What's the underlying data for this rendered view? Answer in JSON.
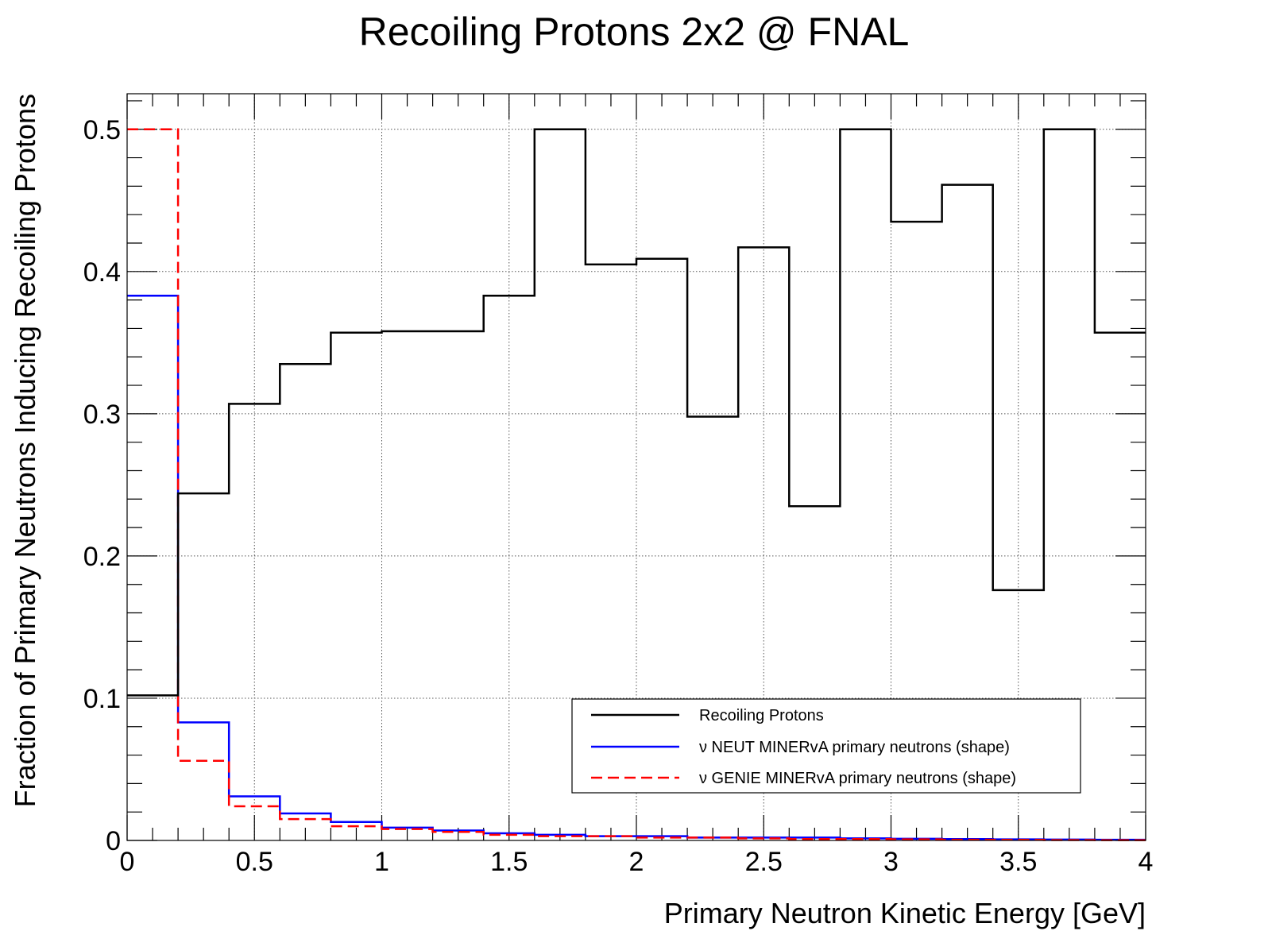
{
  "chart_data": {
    "type": "line",
    "title": "Recoiling Protons 2x2 @ FNAL",
    "xlabel": "Primary Neutron Kinetic Energy [GeV]",
    "ylabel": "Fraction of Primary Neutrons Inducing Recoiling Protons",
    "xlim": [
      0,
      4
    ],
    "ylim": [
      0,
      0.525
    ],
    "grid": true,
    "legend_position": "bottom-right",
    "x_ticks": [
      0,
      0.5,
      1,
      1.5,
      2,
      2.5,
      3,
      3.5,
      4
    ],
    "x_tick_labels": [
      "0",
      "0.5",
      "1",
      "1.5",
      "2",
      "2.5",
      "3",
      "3.5",
      "4"
    ],
    "y_ticks": [
      0,
      0.1,
      0.2,
      0.3,
      0.4,
      0.5
    ],
    "y_tick_labels": [
      "0",
      "0.1",
      "0.2",
      "0.3",
      "0.4",
      "0.5"
    ],
    "bin_edges": [
      0,
      0.2,
      0.4,
      0.6,
      0.8,
      1.0,
      1.2,
      1.4,
      1.6,
      1.8,
      2.0,
      2.2,
      2.4,
      2.6,
      2.8,
      3.0,
      3.2,
      3.4,
      3.6,
      3.8,
      4.0
    ],
    "series": [
      {
        "name": "Recoiling Protons",
        "color": "#000000",
        "style": "solid",
        "values": [
          0.102,
          0.244,
          0.307,
          0.335,
          0.357,
          0.358,
          0.358,
          0.383,
          0.5,
          0.405,
          0.409,
          0.298,
          0.417,
          0.235,
          0.5,
          0.435,
          0.461,
          0.176,
          0.5,
          0.357
        ]
      },
      {
        "name": "ν NEUT MINERvA primary neutrons (shape)",
        "color": "#0000ff",
        "style": "solid",
        "values": [
          0.383,
          0.083,
          0.031,
          0.019,
          0.013,
          0.009,
          0.007,
          0.005,
          0.004,
          0.003,
          0.003,
          0.002,
          0.002,
          0.002,
          0.0015,
          0.0012,
          0.001,
          0.0008,
          0.0006,
          0.0005
        ]
      },
      {
        "name": "ν GENIE MINERvA primary neutrons (shape)",
        "color": "#ff0000",
        "style": "dashed",
        "values": [
          0.5,
          0.056,
          0.024,
          0.015,
          0.01,
          0.008,
          0.006,
          0.004,
          0.003,
          0.003,
          0.002,
          0.002,
          0.0015,
          0.001,
          0.001,
          0.0008,
          0.0005,
          0.0004,
          0.0003,
          0.0002
        ]
      }
    ]
  }
}
